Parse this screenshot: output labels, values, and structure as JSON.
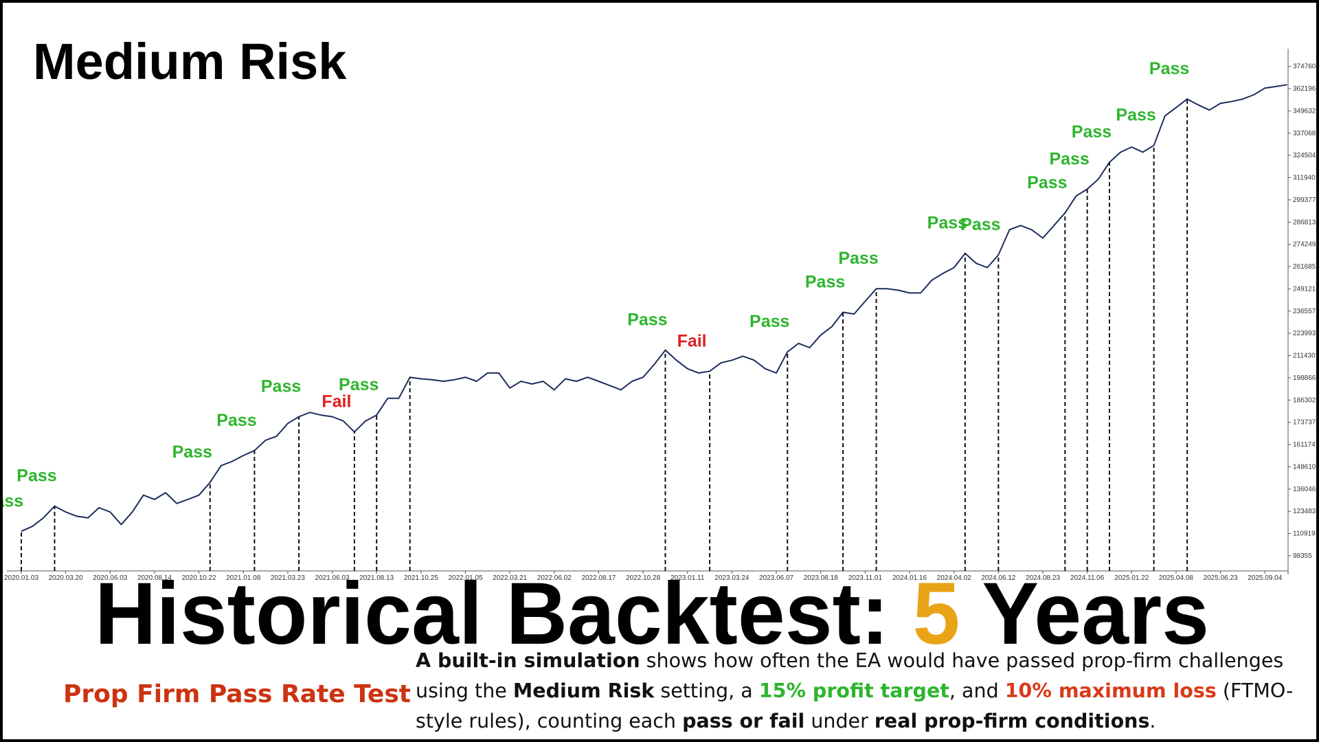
{
  "title": "Medium Risk",
  "chart_data": {
    "type": "line",
    "color": "#1b2d5e",
    "categories": [
      "2020.01.03",
      null,
      null,
      null,
      "2020.03.20",
      null,
      null,
      null,
      "2020.06.03",
      null,
      null,
      null,
      "2020.08.14",
      null,
      null,
      null,
      "2020.10.22",
      null,
      null,
      null,
      "2021.01.08",
      null,
      null,
      null,
      "2021.03.23",
      null,
      null,
      null,
      "2021.06.03",
      null,
      null,
      null,
      "2021.08.13",
      null,
      null,
      null,
      "2021.10.25",
      null,
      null,
      null,
      "2022.01.05",
      null,
      null,
      null,
      "2022.03.21",
      null,
      null,
      null,
      "2022.06.02",
      null,
      null,
      null,
      "2022.08.17",
      null,
      null,
      null,
      "2022.10.28",
      null,
      null,
      null,
      "2023.01.11",
      null,
      null,
      null,
      "2023.03.24",
      null,
      null,
      null,
      "2023.06.07",
      null,
      null,
      null,
      "2023.08.18",
      null,
      null,
      null,
      "2023.11.01",
      null,
      null,
      null,
      "2024.01.16",
      null,
      null,
      null,
      "2024.04.02",
      null,
      null,
      null,
      "2024.06.12",
      null,
      null,
      null,
      "2024.08.23",
      null,
      null,
      null,
      "2024.11.06",
      null,
      null,
      null,
      "2025.01.22",
      null,
      null,
      null,
      "2025.04.08",
      null,
      null,
      null,
      "2025.06.23",
      null,
      null,
      null,
      "2025.09.04",
      null,
      null
    ],
    "values": [
      112200,
      115000,
      119800,
      126400,
      123100,
      120700,
      119800,
      125500,
      123100,
      116000,
      123100,
      132600,
      130200,
      134000,
      127900,
      130200,
      132600,
      139800,
      149300,
      151700,
      155000,
      157800,
      163600,
      165900,
      173100,
      176900,
      179300,
      177800,
      176900,
      174500,
      168300,
      174500,
      177800,
      187300,
      187300,
      199200,
      198300,
      197800,
      196900,
      197800,
      199200,
      196900,
      201600,
      201600,
      193100,
      196900,
      195400,
      196900,
      192100,
      198300,
      196900,
      199200,
      196900,
      194500,
      192100,
      196900,
      199200,
      206400,
      214500,
      208800,
      204000,
      201600,
      202600,
      207300,
      208800,
      211100,
      208800,
      204000,
      201600,
      213500,
      218300,
      215900,
      223000,
      227800,
      235900,
      234900,
      242100,
      249200,
      249200,
      248300,
      246800,
      246800,
      254000,
      257800,
      261100,
      269200,
      263500,
      261100,
      268300,
      282500,
      284900,
      282500,
      277800,
      284900,
      292000,
      301600,
      305400,
      311100,
      320600,
      326300,
      329200,
      326300,
      330100,
      346800,
      351500,
      356300,
      353000,
      350100,
      353900,
      354900,
      356300,
      358700,
      362500,
      363400,
      364400
    ],
    "ylim": [
      89800,
      384700
    ],
    "yticks": [
      98355,
      110919,
      123483,
      136046,
      148610,
      161174,
      173737,
      186302,
      198866,
      211430,
      223993,
      236557,
      249121,
      261685,
      274249,
      286813,
      299377,
      311940,
      324504,
      337068,
      349632,
      362196,
      374760
    ],
    "markers": [
      {
        "at": 0,
        "label": "Pass",
        "color": "#2db52d"
      },
      {
        "at": 3,
        "label": "Pass",
        "color": "#2db52d"
      },
      {
        "at": 17,
        "label": "Pass",
        "color": "#2db52d"
      },
      {
        "at": 21,
        "label": "Pass",
        "color": "#2db52d"
      },
      {
        "at": 25,
        "label": "Pass",
        "color": "#2db52d"
      },
      {
        "at": 30,
        "label": "Fail",
        "color": "#e02020"
      },
      {
        "at": 32,
        "label": "Pass",
        "color": "#2db52d"
      },
      {
        "at": 35
      },
      {
        "at": 58,
        "label": "Pass",
        "color": "#2db52d"
      },
      {
        "at": 62,
        "label": "Fail",
        "color": "#e02020"
      },
      {
        "at": 69,
        "label": "Pass",
        "color": "#2db52d"
      },
      {
        "at": 74,
        "label": "Pass",
        "color": "#2db52d"
      },
      {
        "at": 77,
        "label": "Pass",
        "color": "#2db52d"
      },
      {
        "at": 85,
        "label": "Pass",
        "color": "#2db52d"
      },
      {
        "at": 88,
        "label": "Pass",
        "color": "#2db52d"
      },
      {
        "at": 94,
        "label": "Pass",
        "color": "#2db52d"
      },
      {
        "at": 96,
        "label": "Pass",
        "color": "#2db52d"
      },
      {
        "at": 98,
        "label": "Pass",
        "color": "#2db52d"
      },
      {
        "at": 102,
        "label": "Pass",
        "color": "#2db52d"
      },
      {
        "at": 105,
        "label": "Pass",
        "color": "#2db52d"
      }
    ]
  },
  "heading": {
    "before": "Historical Backtest: ",
    "highlight": "5",
    "after": " Years",
    "highlight_color": "#e8a317"
  },
  "subtitle": {
    "text": "Prop Firm Pass Rate Test",
    "color": "#cc3311"
  },
  "description": [
    {
      "text": "A built-in simulation",
      "bold": true
    },
    {
      "text": " shows how often the EA would have passed prop-firm challenges using the "
    },
    {
      "text": "Medium Risk",
      "bold": true
    },
    {
      "text": " setting, a "
    },
    {
      "text": "15% profit target",
      "bold": true,
      "color": "#2db52d"
    },
    {
      "text": ", and "
    },
    {
      "text": "10% maximum loss",
      "bold": true,
      "color": "#d93a1a"
    },
    {
      "text": " (FTMO-style rules), counting each "
    },
    {
      "text": "pass or fail",
      "bold": true
    },
    {
      "text": " under "
    },
    {
      "text": "real prop-firm conditions",
      "bold": true
    },
    {
      "text": "."
    }
  ]
}
